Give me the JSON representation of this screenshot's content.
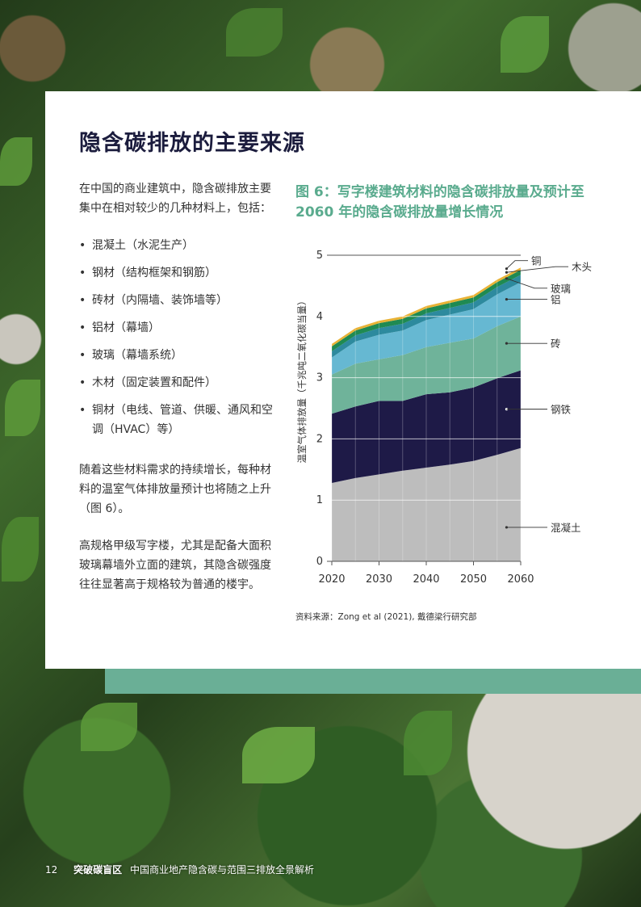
{
  "heading": "隐含碳排放的主要来源",
  "intro": "在中国的商业建筑中，隐含碳排放主要集中在相对较少的几种材料上，包括：",
  "materials": [
    "混凝土（水泥生产）",
    "钢材（结构框架和钢筋）",
    "砖材（内隔墙、装饰墙等）",
    "铝材（幕墙）",
    "玻璃（幕墙系统）",
    "木材（固定装置和配件）",
    "铜材（电线、管道、供暖、通风和空调（HVAC）等）"
  ],
  "para1": "随着这些材料需求的持续增长，每种材料的温室气体排放量预计也将随之上升（图 6）。",
  "para2": "高规格甲级写字楼，尤其是配备大面积玻璃幕墙外立面的建筑，其隐含碳强度往往显著高于规格较为普通的楼宇。",
  "figure_title": "图 6：写字楼建筑材料的隐含碳排放量及预计至 2060 年的隐含碳排放量增长情况",
  "source": "资料来源：Zong et al (2021), 戴德梁行研究部",
  "footer": {
    "page": "12",
    "brand": "突破碳盲区",
    "title": "中国商业地产隐含碳与范围三排放全景解析"
  },
  "colors": {
    "concrete": "#bdbdbd",
    "steel": "#1e1a47",
    "brick": "#6fb39a",
    "aluminium": "#66b8d2",
    "glass": "#2d8a9e",
    "wood": "#1f8a52",
    "copper": "#e8b235",
    "accent": "#5aab8e"
  },
  "chart_data": {
    "type": "area",
    "stacked": true,
    "ylabel": "温室气体排放量（千兆吨二氧化碳当量）",
    "ylim": [
      0,
      5
    ],
    "yticks": [
      "0",
      "1",
      "2",
      "3",
      "4",
      "5"
    ],
    "xticks": [
      "2020",
      "2030",
      "2040",
      "2050",
      "2060"
    ],
    "x": [
      2020,
      2025,
      2030,
      2035,
      2040,
      2045,
      2050,
      2055,
      2060
    ],
    "series": [
      {
        "name": "混凝土",
        "values": [
          1.28,
          1.36,
          1.42,
          1.48,
          1.53,
          1.58,
          1.64,
          1.74,
          1.85
        ]
      },
      {
        "name": "钢铁",
        "values": [
          1.13,
          1.17,
          1.2,
          1.14,
          1.2,
          1.18,
          1.2,
          1.25,
          1.27
        ]
      },
      {
        "name": "砖",
        "values": [
          0.64,
          0.7,
          0.68,
          0.75,
          0.77,
          0.81,
          0.8,
          0.85,
          0.88
        ]
      },
      {
        "name": "铝",
        "values": [
          0.28,
          0.36,
          0.4,
          0.4,
          0.44,
          0.46,
          0.48,
          0.52,
          0.56
        ]
      },
      {
        "name": "玻璃",
        "values": [
          0.1,
          0.1,
          0.11,
          0.11,
          0.11,
          0.11,
          0.11,
          0.12,
          0.12
        ]
      },
      {
        "name": "木头",
        "values": [
          0.08,
          0.08,
          0.08,
          0.08,
          0.08,
          0.08,
          0.08,
          0.08,
          0.08
        ]
      },
      {
        "name": "铜",
        "values": [
          0.04,
          0.04,
          0.04,
          0.04,
          0.04,
          0.04,
          0.04,
          0.04,
          0.04
        ]
      }
    ]
  }
}
